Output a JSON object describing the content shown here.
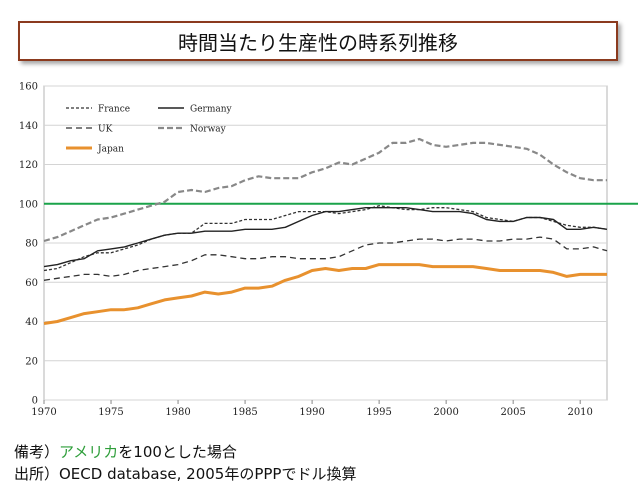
{
  "title": "時間当たり生産性の時系列推移",
  "notes": {
    "line1_prefix": "備考）",
    "line1_accent": "アメリカ",
    "line1_suffix": "を100とした場合",
    "line2": "出所）OECD database,  2005年のPPPでドル換算"
  },
  "chart_data": {
    "type": "line",
    "title": "",
    "xlabel": "",
    "ylabel": "",
    "xlim": [
      1970,
      2012
    ],
    "ylim": [
      0,
      160
    ],
    "yticks": [
      0,
      20,
      40,
      60,
      80,
      100,
      120,
      140,
      160
    ],
    "xticks": [
      1970,
      1975,
      1980,
      1985,
      1990,
      1995,
      2000,
      2005,
      2010
    ],
    "grid": true,
    "reference_line": {
      "value": 100,
      "color": "#1aa34a"
    },
    "legend": [
      {
        "name": "France",
        "style": "dashed-short",
        "color": "#333333"
      },
      {
        "name": "Germany",
        "style": "solid",
        "color": "#222222"
      },
      {
        "name": "UK",
        "style": "dashed",
        "color": "#333333"
      },
      {
        "name": "Norway",
        "style": "dashed-thick",
        "color": "#888888"
      },
      {
        "name": "Japan",
        "style": "solid-thick",
        "color": "#e8912e"
      }
    ],
    "x": [
      1970,
      1971,
      1972,
      1973,
      1974,
      1975,
      1976,
      1977,
      1978,
      1979,
      1980,
      1981,
      1982,
      1983,
      1984,
      1985,
      1986,
      1987,
      1988,
      1989,
      1990,
      1991,
      1992,
      1993,
      1994,
      1995,
      1996,
      1997,
      1998,
      1999,
      2000,
      2001,
      2002,
      2003,
      2004,
      2005,
      2006,
      2007,
      2008,
      2009,
      2010,
      2011,
      2012
    ],
    "series": [
      {
        "name": "France",
        "values": [
          66,
          67,
          70,
          73,
          75,
          75,
          77,
          79,
          82,
          84,
          85,
          85,
          90,
          90,
          90,
          92,
          92,
          92,
          94,
          96,
          96,
          96,
          95,
          96,
          97,
          99,
          98,
          97,
          97,
          98,
          98,
          97,
          96,
          93,
          92,
          91,
          93,
          93,
          91,
          89,
          88,
          88,
          87
        ]
      },
      {
        "name": "Germany",
        "values": [
          68,
          69,
          71,
          72,
          76,
          77,
          78,
          80,
          82,
          84,
          85,
          85,
          86,
          86,
          86,
          87,
          87,
          87,
          88,
          91,
          94,
          96,
          96,
          97,
          98,
          98,
          98,
          98,
          97,
          96,
          96,
          96,
          95,
          92,
          91,
          91,
          93,
          93,
          92,
          87,
          87,
          88,
          87
        ]
      },
      {
        "name": "UK",
        "values": [
          61,
          62,
          63,
          64,
          64,
          63,
          64,
          66,
          67,
          68,
          69,
          71,
          74,
          74,
          73,
          72,
          72,
          73,
          73,
          72,
          72,
          72,
          73,
          76,
          79,
          80,
          80,
          81,
          82,
          82,
          81,
          82,
          82,
          81,
          81,
          82,
          82,
          83,
          82,
          77,
          77,
          78,
          76
        ]
      },
      {
        "name": "Norway",
        "values": [
          81,
          83,
          86,
          89,
          92,
          93,
          95,
          97,
          99,
          101,
          106,
          107,
          106,
          108,
          109,
          112,
          114,
          113,
          113,
          113,
          116,
          118,
          121,
          120,
          123,
          126,
          131,
          131,
          133,
          130,
          129,
          130,
          131,
          131,
          130,
          129,
          128,
          125,
          120,
          116,
          113,
          112,
          112
        ]
      },
      {
        "name": "Japan",
        "values": [
          39,
          40,
          42,
          44,
          45,
          46,
          46,
          47,
          49,
          51,
          52,
          53,
          55,
          54,
          55,
          57,
          57,
          58,
          61,
          63,
          66,
          67,
          66,
          67,
          67,
          69,
          69,
          69,
          69,
          68,
          68,
          68,
          68,
          67,
          66,
          66,
          66,
          66,
          65,
          63,
          64,
          64,
          64
        ]
      }
    ]
  }
}
